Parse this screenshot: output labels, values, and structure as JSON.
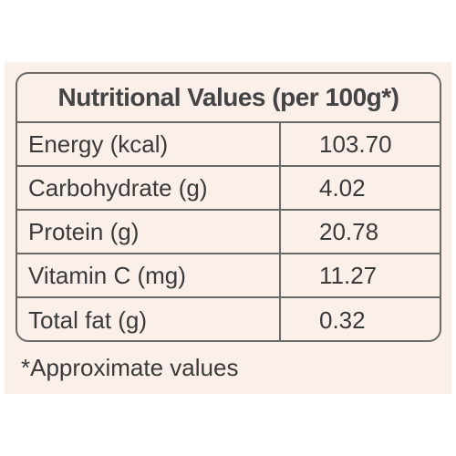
{
  "table": {
    "title": "Nutritional Values (per 100g*)",
    "rows": [
      {
        "label": "Energy (kcal)",
        "value": "103.70"
      },
      {
        "label": "Carbohydrate (g)",
        "value": "4.02"
      },
      {
        "label": "Protein (g)",
        "value": "20.78"
      },
      {
        "label": "Vitamin C (mg)",
        "value": "11.27"
      },
      {
        "label": "Total fat (g)",
        "value": "0.32"
      }
    ]
  },
  "footnote": "*Approximate values",
  "colors": {
    "panel_background": "#fbefea",
    "border": "#6a6a6a",
    "text": "#3a3a3a"
  }
}
